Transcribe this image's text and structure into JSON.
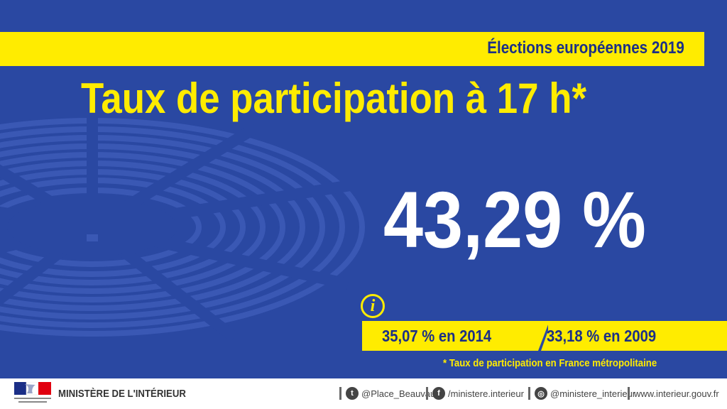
{
  "header": {
    "supertitle": "Élections européennes 2019",
    "title": "Taux de participation à 17 h*"
  },
  "main": {
    "value": "43,29 %",
    "comparisons": [
      {
        "text": "35,07 % en 2014"
      },
      {
        "text": "33,18 % en 2009"
      }
    ],
    "footnote": "* Taux de participation en France métropolitaine"
  },
  "footer": {
    "logo_text": "Liberté · Égalité · Fraternité RÉPUBLIQUE FRANÇAISE",
    "ministry": "MINISTÈRE DE L'INTÉRIEUR",
    "social": [
      {
        "icon": "twitter-icon",
        "text": "@Place_Beauvau"
      },
      {
        "icon": "facebook-icon",
        "text": "/ministere.interieur"
      },
      {
        "icon": "instagram-icon",
        "text": "@ministere_interieur"
      },
      {
        "icon": "",
        "text": "www.interieur.gouv.fr"
      }
    ]
  },
  "colors": {
    "background": "#2a48a2",
    "accent_yellow": "#ffec00",
    "text_dark_blue": "#1b2f87",
    "footer_bg": "#ffffff"
  }
}
